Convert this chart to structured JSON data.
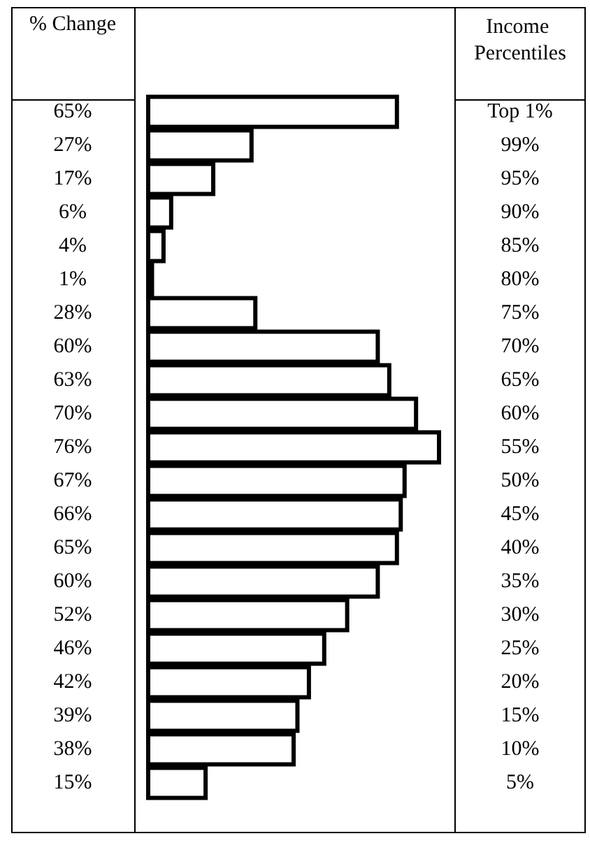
{
  "chart_data": {
    "type": "bar",
    "orientation": "horizontal",
    "xlabel": "% Change",
    "ylabel": "Income Percentiles",
    "categories": [
      "Top 1%",
      "99%",
      "95%",
      "90%",
      "85%",
      "80%",
      "75%",
      "70%",
      "65%",
      "60%",
      "55%",
      "50%",
      "45%",
      "40%",
      "35%",
      "30%",
      "25%",
      "20%",
      "15%",
      "10%",
      "5%"
    ],
    "values": [
      65,
      27,
      17,
      6,
      4,
      1,
      28,
      60,
      63,
      70,
      76,
      67,
      66,
      65,
      60,
      52,
      46,
      42,
      39,
      38,
      15
    ],
    "value_labels": [
      "65%",
      "27%",
      "17%",
      "6%",
      "4%",
      "1%",
      "28%",
      "60%",
      "63%",
      "70%",
      "76%",
      "67%",
      "66%",
      "65%",
      "60%",
      "52%",
      "46%",
      "42%",
      "39%",
      "38%",
      "15%"
    ],
    "color": "#ffffff"
  }
}
